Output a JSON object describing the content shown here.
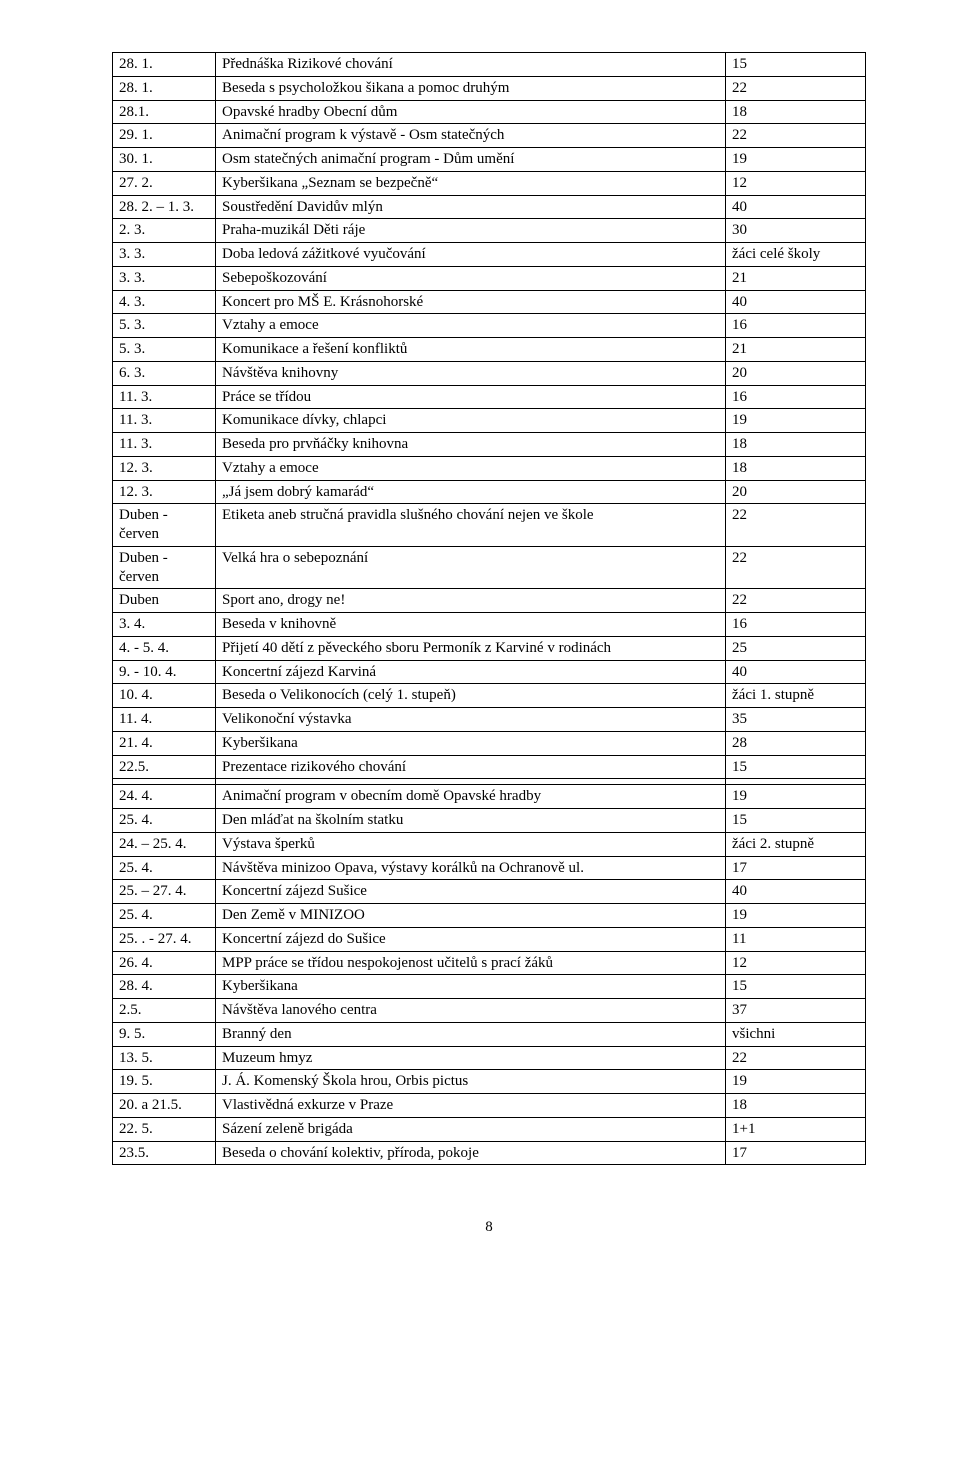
{
  "rows": [
    {
      "d": "28. 1.",
      "t": "Přednáška Rizikové chování",
      "v": "15"
    },
    {
      "d": "28. 1.",
      "t": "Beseda s psycholožkou šikana a pomoc druhým",
      "v": "22"
    },
    {
      "d": "28.1.",
      "t": "Opavské hradby Obecní dům",
      "v": "18"
    },
    {
      "d": "29. 1.",
      "t": "Animační program k výstavě - Osm statečných",
      "v": "22"
    },
    {
      "d": "30. 1.",
      "t": "Osm statečných animační program - Dům umění",
      "v": "19"
    },
    {
      "d": "27. 2.",
      "t": "Kyberšikana „Seznam se bezpečně“",
      "v": "12"
    },
    {
      "d": "28. 2. – 1. 3.",
      "t": "Soustředění Davidův mlýn",
      "v": "40"
    },
    {
      "d": "2. 3.",
      "t": "Praha-muzikál Děti ráje",
      "v": "30"
    },
    {
      "d": "3. 3.",
      "t": "Doba ledová zážitkové vyučování",
      "v": "žáci celé školy"
    },
    {
      "d": "3. 3.",
      "t": "Sebepoškozování",
      "v": "21"
    },
    {
      "d": "4. 3.",
      "t": "Koncert pro MŠ E. Krásnohorské",
      "v": "40"
    },
    {
      "d": "5. 3.",
      "t": "Vztahy a emoce",
      "v": "16"
    },
    {
      "d": "5. 3.",
      "t": "Komunikace a řešení konfliktů",
      "v": "21"
    },
    {
      "d": "6. 3.",
      "t": "Návštěva knihovny",
      "v": "20"
    },
    {
      "d": "11. 3.",
      "t": "Práce se třídou",
      "v": "16"
    },
    {
      "d": "11. 3.",
      "t": "Komunikace dívky, chlapci",
      "v": "19"
    },
    {
      "d": "11. 3.",
      "t": "Beseda pro prvňáčky knihovna",
      "v": "18"
    },
    {
      "d": "12. 3.",
      "t": "Vztahy a emoce",
      "v": "18"
    },
    {
      "d": "12. 3.",
      "t": "„Já jsem dobrý kamarád“",
      "v": "20"
    },
    {
      "d": "Duben - červen",
      "t": "Etiketa aneb stručná pravidla slušného chování nejen ve škole",
      "v": "22"
    },
    {
      "d": "Duben - červen",
      "t": "Velká hra o sebepoznání",
      "v": "22"
    },
    {
      "d": "Duben",
      "t": "Sport ano, drogy ne!",
      "v": "22"
    },
    {
      "d": "3. 4.",
      "t": "Beseda v knihovně",
      "v": "16"
    },
    {
      "d": "4. - 5. 4.",
      "t": "Přijetí 40 dětí z pěveckého sboru Permoník z Karviné v rodinách",
      "v": "25"
    },
    {
      "d": "9. - 10. 4.",
      "t": "Koncertní zájezd Karviná",
      "v": "40"
    },
    {
      "d": "10. 4.",
      "t": "Beseda o Velikonocích (celý 1. stupeň)",
      "v": "žáci 1. stupně"
    },
    {
      "d": "11. 4.",
      "t": "Velikonoční výstavka",
      "v": "35"
    },
    {
      "d": "21. 4.",
      "t": "Kyberšikana",
      "v": "28"
    },
    {
      "d": "22.5.",
      "t": "Prezentace rizikového chování",
      "v": "15"
    },
    {
      "spacer": true
    },
    {
      "d": "24. 4.",
      "t": "Animační program v obecním domě Opavské hradby",
      "v": "19"
    },
    {
      "d": "25. 4.",
      "t": "Den mláďat na školním statku",
      "v": "15"
    },
    {
      "d": "24. – 25. 4.",
      "t": "Výstava šperků",
      "v": "žáci 2. stupně"
    },
    {
      "d": "25. 4.",
      "t": "Návštěva minizoo Opava, výstavy korálků na Ochranově ul.",
      "v": "17"
    },
    {
      "d": "25. – 27. 4.",
      "t": " Koncertní zájezd Sušice",
      "v": "40"
    },
    {
      "d": "25. 4.",
      "t": "Den Země v MINIZOO",
      "v": "19"
    },
    {
      "d": "25. . - 27. 4.",
      "t": "Koncertní zájezd do Sušice",
      "v": "11"
    },
    {
      "d": "26. 4.",
      "t": "MPP práce se třídou nespokojenost učitelů s prací žáků",
      "v": "12"
    },
    {
      "d": "28. 4.",
      "t": "Kyberšikana",
      "v": "15"
    },
    {
      "d": "2.5.",
      "t": "Návštěva lanového centra",
      "v": "37"
    },
    {
      "d": "9. 5.",
      "t": "Branný den",
      "v": "všichni"
    },
    {
      "d": "13. 5.",
      "t": "Muzeum hmyz",
      "v": "22"
    },
    {
      "d": "19. 5.",
      "t": "J. Á. Komenský  Škola hrou, Orbis pictus",
      "v": "19"
    },
    {
      "d": "20. a 21.5.",
      "t": "Vlastivědná exkurze v Praze",
      "v": "18"
    },
    {
      "d": "22. 5.",
      "t": "Sázení zeleně brigáda",
      "v": "1+1"
    },
    {
      "d": "23.5.",
      "t": "Beseda o chování kolektiv, příroda, pokoje",
      "v": "17"
    }
  ],
  "page_number": "8"
}
